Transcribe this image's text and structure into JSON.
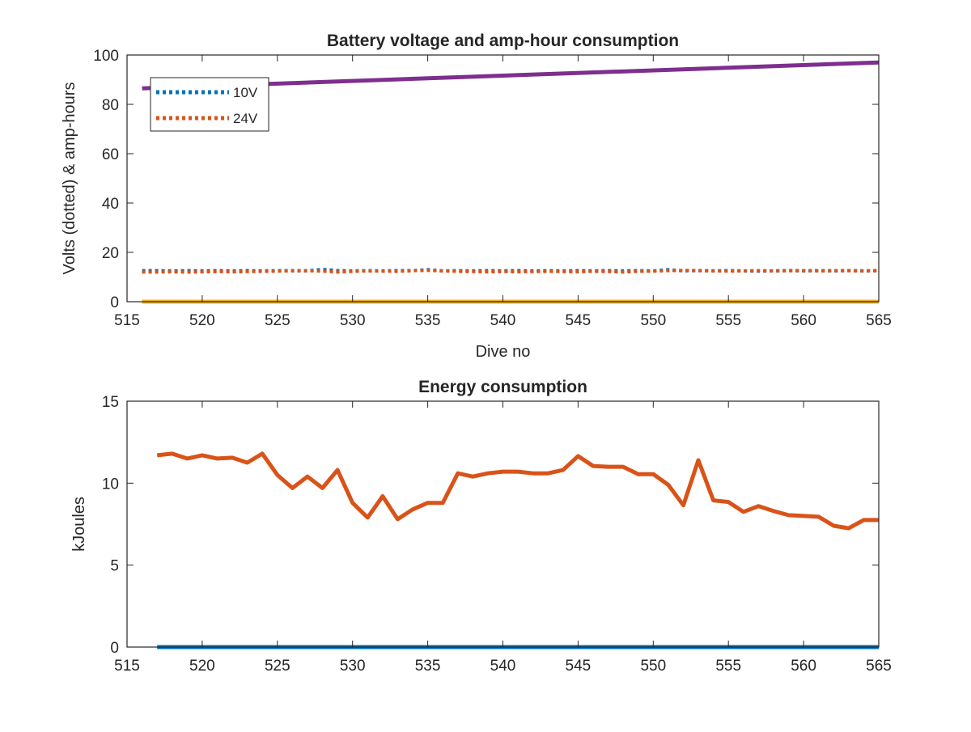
{
  "chart_data": [
    {
      "type": "line",
      "title": "Battery voltage and amp-hour consumption",
      "xlabel": "Dive no",
      "ylabel": "Volts (dotted) & amp-hours",
      "xlim": [
        515,
        565
      ],
      "ylim": [
        0,
        100
      ],
      "xticks": [
        515,
        520,
        525,
        530,
        535,
        540,
        545,
        550,
        555,
        560,
        565
      ],
      "yticks": [
        0,
        20,
        40,
        60,
        80,
        100
      ],
      "legend": {
        "placement": "top-left",
        "entries": [
          "10V",
          "24V"
        ]
      },
      "series": [
        {
          "name": "10V",
          "style": "dotted",
          "color": "#0072BD",
          "x": [
            516,
            517,
            518,
            519,
            520,
            521,
            522,
            523,
            524,
            525,
            526,
            527,
            528,
            529,
            530,
            531,
            532,
            533,
            534,
            535,
            536,
            537,
            538,
            539,
            540,
            541,
            542,
            543,
            544,
            545,
            546,
            547,
            548,
            549,
            550,
            551,
            552,
            553,
            554,
            555,
            556,
            557,
            558,
            559,
            560,
            561,
            562,
            563,
            564,
            565
          ],
          "y": [
            12.6,
            12.6,
            12.5,
            12.6,
            12.5,
            12.6,
            12.5,
            12.6,
            12.5,
            12.6,
            12.6,
            12.5,
            13.1,
            12.6,
            12.5,
            12.6,
            12.5,
            12.6,
            12.6,
            13.0,
            12.5,
            12.6,
            12.5,
            12.6,
            12.5,
            12.6,
            12.5,
            12.6,
            12.5,
            12.6,
            12.5,
            12.6,
            12.5,
            12.6,
            12.5,
            13.0,
            12.5,
            12.6,
            12.5,
            12.6,
            12.5,
            12.4,
            12.5,
            12.6,
            12.5,
            12.6,
            12.5,
            12.6,
            12.5,
            12.6
          ]
        },
        {
          "name": "24V",
          "style": "dotted",
          "color": "#D95319",
          "x": [
            516,
            517,
            518,
            519,
            520,
            521,
            522,
            523,
            524,
            525,
            526,
            527,
            528,
            529,
            530,
            531,
            532,
            533,
            534,
            535,
            536,
            537,
            538,
            539,
            540,
            541,
            542,
            543,
            544,
            545,
            546,
            547,
            548,
            549,
            550,
            551,
            552,
            553,
            554,
            555,
            556,
            557,
            558,
            559,
            560,
            561,
            562,
            563,
            564,
            565
          ],
          "y": [
            12.0,
            12.0,
            12.1,
            12.0,
            12.1,
            12.2,
            12.1,
            12.2,
            12.3,
            12.4,
            12.5,
            12.6,
            12.4,
            12.0,
            12.3,
            12.5,
            12.4,
            12.3,
            12.6,
            12.7,
            12.5,
            12.3,
            12.2,
            12.1,
            12.2,
            12.1,
            12.2,
            12.3,
            12.2,
            12.1,
            12.3,
            12.2,
            12.0,
            12.3,
            12.4,
            12.6,
            12.7,
            12.6,
            12.5,
            12.4,
            12.5,
            12.6,
            12.5,
            12.6,
            12.6,
            12.5,
            12.6,
            12.6,
            12.5,
            12.6
          ]
        },
        {
          "name": "",
          "style": "solid",
          "color": "#7E2F8E",
          "x": [
            516,
            565
          ],
          "y": [
            86.5,
            97.0
          ]
        },
        {
          "name": "",
          "style": "solid",
          "color": "#EDB120",
          "x": [
            516,
            565
          ],
          "y": [
            0,
            0
          ]
        }
      ]
    },
    {
      "type": "line",
      "title": "Energy consumption",
      "xlabel": "",
      "ylabel": "kJoules",
      "xlim": [
        515,
        565
      ],
      "ylim": [
        0,
        15
      ],
      "xticks": [
        515,
        520,
        525,
        530,
        535,
        540,
        545,
        550,
        555,
        560,
        565
      ],
      "yticks": [
        0,
        5,
        10,
        15
      ],
      "series": [
        {
          "name": "",
          "style": "solid",
          "color": "#D95319",
          "x": [
            517,
            518,
            519,
            520,
            521,
            522,
            523,
            524,
            525,
            526,
            527,
            528,
            529,
            530,
            531,
            532,
            533,
            534,
            535,
            536,
            537,
            538,
            539,
            540,
            541,
            542,
            543,
            544,
            545,
            546,
            547,
            548,
            549,
            550,
            551,
            552,
            553,
            554,
            555,
            556,
            557,
            558,
            559,
            560,
            561,
            562,
            563,
            564,
            565
          ],
          "y": [
            11.7,
            11.8,
            11.5,
            11.7,
            11.5,
            11.55,
            11.25,
            11.8,
            10.5,
            9.7,
            10.4,
            9.7,
            10.8,
            8.8,
            7.9,
            9.2,
            7.8,
            8.4,
            8.8,
            8.8,
            10.6,
            10.4,
            10.6,
            10.7,
            10.7,
            10.6,
            10.6,
            10.8,
            11.65,
            11.05,
            11.0,
            11.0,
            10.55,
            10.55,
            9.9,
            8.65,
            11.4,
            8.95,
            8.85,
            8.25,
            8.6,
            8.3,
            8.05,
            8.0,
            7.95,
            7.4,
            7.25,
            7.75,
            7.75
          ]
        },
        {
          "name": "",
          "style": "solid",
          "color": "#0072BD",
          "x": [
            517,
            565
          ],
          "y": [
            0,
            0
          ]
        }
      ]
    }
  ]
}
